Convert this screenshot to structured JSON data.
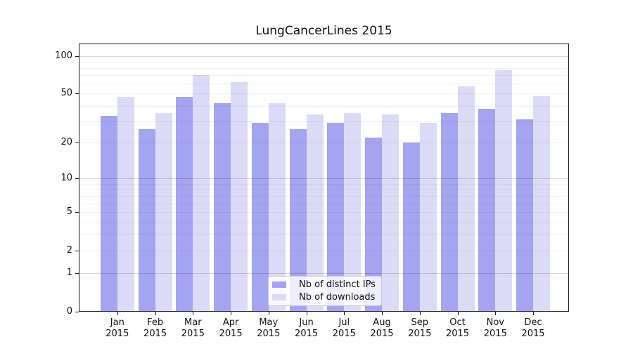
{
  "title": "LungCancerLines 2015",
  "legend": {
    "items": [
      {
        "label": "Nb of distinct IPs",
        "color": "#a4a4f0"
      },
      {
        "label": "Nb of downloads",
        "color": "#dbdbf8"
      }
    ]
  },
  "chart_data": {
    "type": "bar",
    "title": "LungCancerLines 2015",
    "categories": [
      {
        "month": "Jan",
        "year": "2015"
      },
      {
        "month": "Feb",
        "year": "2015"
      },
      {
        "month": "Mar",
        "year": "2015"
      },
      {
        "month": "Apr",
        "year": "2015"
      },
      {
        "month": "May",
        "year": "2015"
      },
      {
        "month": "Jun",
        "year": "2015"
      },
      {
        "month": "Jul",
        "year": "2015"
      },
      {
        "month": "Aug",
        "year": "2015"
      },
      {
        "month": "Sep",
        "year": "2015"
      },
      {
        "month": "Oct",
        "year": "2015"
      },
      {
        "month": "Nov",
        "year": "2015"
      },
      {
        "month": "Dec",
        "year": "2015"
      }
    ],
    "series": [
      {
        "name": "Nb of distinct IPs",
        "color": "#a4a4f0",
        "values": [
          33,
          26,
          47,
          42,
          29,
          26,
          29,
          22,
          20,
          35,
          38,
          31
        ]
      },
      {
        "name": "Nb of downloads",
        "color": "#dbdbf8",
        "values": [
          47,
          35,
          70,
          62,
          42,
          34,
          35,
          34,
          29,
          57,
          77,
          48
        ]
      }
    ],
    "yscale": "log1p",
    "ylim": [
      0,
      125
    ],
    "ytick_values": [
      0,
      1,
      2,
      5,
      10,
      20,
      50,
      100
    ],
    "ytick_labels": [
      "0",
      "1",
      "2",
      "5",
      "10",
      "20",
      "50",
      "100"
    ],
    "grid_major_values": [
      1,
      10,
      100
    ],
    "grid_minor_values": [
      2,
      3,
      4,
      5,
      6,
      7,
      8,
      9,
      20,
      30,
      40,
      50,
      60,
      70,
      80,
      90
    ],
    "xlabel": "",
    "ylabel": "",
    "legend_position": "lower center"
  }
}
